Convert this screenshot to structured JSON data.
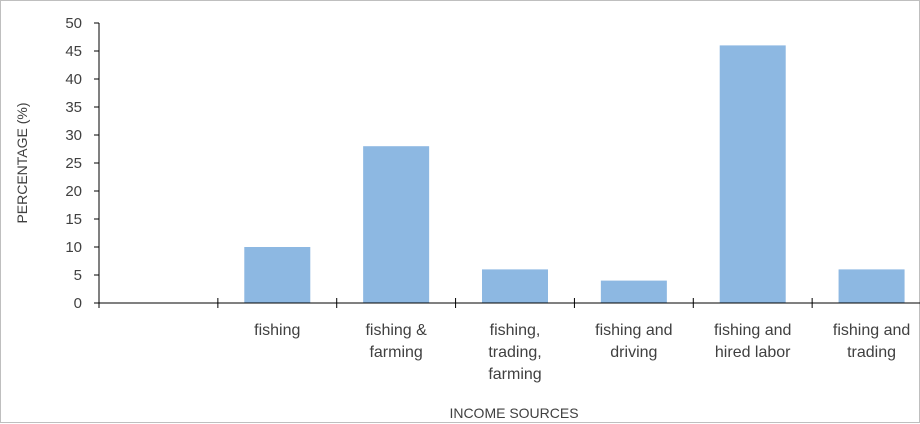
{
  "chart_data": {
    "type": "bar",
    "categories": [
      "",
      "fishing",
      "fishing & farming",
      "fishing, trading, farming",
      "fishing and driving",
      "fishing and hired labor",
      "fishing and trading"
    ],
    "category_lines": [
      [],
      [
        "fishing"
      ],
      [
        "fishing &",
        "farming"
      ],
      [
        "fishing,",
        "trading,",
        "farming"
      ],
      [
        "fishing and",
        "driving"
      ],
      [
        "fishing and",
        "hired labor"
      ],
      [
        "fishing and",
        "trading"
      ]
    ],
    "values": [
      null,
      10,
      28,
      6,
      4,
      46,
      6
    ],
    "xlabel": "INCOME SOURCES",
    "ylabel": "PERCENTAGE (%)",
    "ylim": [
      0,
      50
    ],
    "yticks": [
      "0",
      "5",
      "10",
      "15",
      "20",
      "25",
      "30",
      "35",
      "40",
      "45",
      "50"
    ],
    "grid": false,
    "legend": "none",
    "bar_color": "#8db8e2",
    "axis_color": "#000000"
  }
}
